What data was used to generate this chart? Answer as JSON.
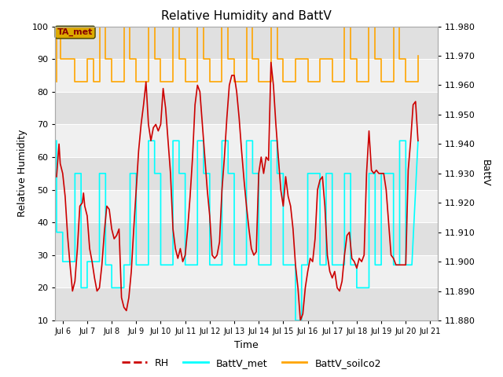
{
  "title": "Relative Humidity and BattV",
  "xlabel": "Time",
  "ylabel_left": "Relative Humidity",
  "ylabel_right": "BattV",
  "xlim_days": [
    5.7,
    21.3
  ],
  "ylim_left": [
    10,
    100
  ],
  "ylim_right": [
    11.88,
    11.98
  ],
  "xtick_labels": [
    "Jul 6",
    "Jul 7",
    "Jul 8",
    "Jul 9",
    "Jul 10",
    "Jul 11",
    "Jul 12",
    "Jul 13",
    "Jul 14",
    "Jul 15",
    "Jul 16",
    "Jul 17",
    "Jul 18",
    "Jul 19",
    "Jul 20",
    "Jul 21"
  ],
  "xtick_positions": [
    6,
    7,
    8,
    9,
    10,
    11,
    12,
    13,
    14,
    15,
    16,
    17,
    18,
    19,
    20,
    21
  ],
  "fig_facecolor": "#ffffff",
  "plot_bg_dark": "#e0e0e0",
  "plot_bg_light": "#f0f0f0",
  "grid_color": "#ffffff",
  "annotation_box_color": "#ddaa00",
  "annotation_text": "TA_met",
  "rh_color": "#cc0000",
  "battv_met_color": "cyan",
  "battv_soilco2_color": "orange",
  "rh_linewidth": 1.2,
  "battv_linewidth": 1.2,
  "legend_labels": [
    "RH",
    "BattV_met",
    "BattV_soilco2"
  ],
  "legend_colors": [
    "#cc0000",
    "cyan",
    "orange"
  ],
  "rh_data": [
    [
      5.75,
      54
    ],
    [
      5.85,
      64
    ],
    [
      5.9,
      58
    ],
    [
      6.0,
      55
    ],
    [
      6.1,
      48
    ],
    [
      6.2,
      36
    ],
    [
      6.3,
      27
    ],
    [
      6.4,
      19
    ],
    [
      6.5,
      22
    ],
    [
      6.6,
      32
    ],
    [
      6.7,
      45
    ],
    [
      6.8,
      46
    ],
    [
      6.85,
      49
    ],
    [
      6.9,
      45
    ],
    [
      7.0,
      42
    ],
    [
      7.1,
      32
    ],
    [
      7.2,
      28
    ],
    [
      7.3,
      23
    ],
    [
      7.4,
      19
    ],
    [
      7.5,
      20
    ],
    [
      7.6,
      27
    ],
    [
      7.7,
      37
    ],
    [
      7.8,
      45
    ],
    [
      7.9,
      44
    ],
    [
      8.0,
      38
    ],
    [
      8.1,
      35
    ],
    [
      8.2,
      36
    ],
    [
      8.3,
      38
    ],
    [
      8.4,
      17
    ],
    [
      8.5,
      14
    ],
    [
      8.6,
      13
    ],
    [
      8.7,
      17
    ],
    [
      8.8,
      25
    ],
    [
      8.9,
      38
    ],
    [
      9.0,
      50
    ],
    [
      9.1,
      62
    ],
    [
      9.2,
      70
    ],
    [
      9.3,
      76
    ],
    [
      9.4,
      83
    ],
    [
      9.5,
      70
    ],
    [
      9.6,
      65
    ],
    [
      9.7,
      69
    ],
    [
      9.8,
      70
    ],
    [
      9.9,
      68
    ],
    [
      10.0,
      70
    ],
    [
      10.1,
      81
    ],
    [
      10.2,
      75
    ],
    [
      10.3,
      65
    ],
    [
      10.4,
      55
    ],
    [
      10.5,
      38
    ],
    [
      10.6,
      32
    ],
    [
      10.7,
      29
    ],
    [
      10.8,
      32
    ],
    [
      10.9,
      28
    ],
    [
      11.0,
      30
    ],
    [
      11.1,
      38
    ],
    [
      11.2,
      48
    ],
    [
      11.3,
      60
    ],
    [
      11.4,
      76
    ],
    [
      11.5,
      82
    ],
    [
      11.6,
      80
    ],
    [
      11.7,
      70
    ],
    [
      11.8,
      60
    ],
    [
      11.9,
      50
    ],
    [
      12.0,
      42
    ],
    [
      12.1,
      30
    ],
    [
      12.2,
      29
    ],
    [
      12.3,
      30
    ],
    [
      12.4,
      34
    ],
    [
      12.5,
      50
    ],
    [
      12.6,
      60
    ],
    [
      12.7,
      72
    ],
    [
      12.8,
      82
    ],
    [
      12.9,
      85
    ],
    [
      13.0,
      85
    ],
    [
      13.1,
      80
    ],
    [
      13.2,
      72
    ],
    [
      13.3,
      62
    ],
    [
      13.4,
      53
    ],
    [
      13.5,
      45
    ],
    [
      13.6,
      38
    ],
    [
      13.7,
      32
    ],
    [
      13.8,
      30
    ],
    [
      13.9,
      31
    ],
    [
      14.0,
      55
    ],
    [
      14.1,
      60
    ],
    [
      14.2,
      55
    ],
    [
      14.3,
      60
    ],
    [
      14.4,
      59
    ],
    [
      14.5,
      89
    ],
    [
      14.6,
      82
    ],
    [
      14.7,
      70
    ],
    [
      14.8,
      60
    ],
    [
      14.9,
      50
    ],
    [
      15.0,
      45
    ],
    [
      15.1,
      54
    ],
    [
      15.2,
      48
    ],
    [
      15.3,
      45
    ],
    [
      15.4,
      38
    ],
    [
      15.5,
      27
    ],
    [
      15.6,
      20
    ],
    [
      15.7,
      10
    ],
    [
      15.8,
      12
    ],
    [
      15.9,
      20
    ],
    [
      16.0,
      25
    ],
    [
      16.1,
      29
    ],
    [
      16.2,
      28
    ],
    [
      16.3,
      35
    ],
    [
      16.4,
      50
    ],
    [
      16.5,
      53
    ],
    [
      16.6,
      54
    ],
    [
      16.7,
      45
    ],
    [
      16.8,
      30
    ],
    [
      16.9,
      25
    ],
    [
      17.0,
      23
    ],
    [
      17.1,
      25
    ],
    [
      17.2,
      20
    ],
    [
      17.3,
      19
    ],
    [
      17.4,
      22
    ],
    [
      17.5,
      30
    ],
    [
      17.6,
      36
    ],
    [
      17.7,
      37
    ],
    [
      17.8,
      29
    ],
    [
      17.9,
      28
    ],
    [
      18.0,
      26
    ],
    [
      18.1,
      29
    ],
    [
      18.2,
      28
    ],
    [
      18.3,
      30
    ],
    [
      18.4,
      55
    ],
    [
      18.5,
      68
    ],
    [
      18.6,
      56
    ],
    [
      18.7,
      55
    ],
    [
      18.8,
      56
    ],
    [
      18.9,
      55
    ],
    [
      19.0,
      55
    ],
    [
      19.1,
      55
    ],
    [
      19.2,
      50
    ],
    [
      19.3,
      40
    ],
    [
      19.4,
      30
    ],
    [
      19.5,
      29
    ],
    [
      19.6,
      27
    ],
    [
      19.7,
      27
    ],
    [
      19.8,
      27
    ],
    [
      19.9,
      27
    ],
    [
      20.0,
      27
    ],
    [
      20.1,
      56
    ],
    [
      20.2,
      65
    ],
    [
      20.3,
      76
    ],
    [
      20.4,
      77
    ],
    [
      20.5,
      65
    ]
  ],
  "battv_met_data": [
    [
      5.75,
      65
    ],
    [
      5.75,
      37
    ],
    [
      6.0,
      37
    ],
    [
      6.0,
      28
    ],
    [
      6.5,
      28
    ],
    [
      6.5,
      55
    ],
    [
      6.75,
      55
    ],
    [
      6.75,
      20
    ],
    [
      7.0,
      20
    ],
    [
      7.0,
      28
    ],
    [
      7.5,
      28
    ],
    [
      7.5,
      55
    ],
    [
      7.75,
      55
    ],
    [
      7.75,
      27
    ],
    [
      8.0,
      27
    ],
    [
      8.0,
      20
    ],
    [
      8.5,
      20
    ],
    [
      8.5,
      27
    ],
    [
      8.75,
      27
    ],
    [
      8.75,
      55
    ],
    [
      9.0,
      55
    ],
    [
      9.0,
      27
    ],
    [
      9.5,
      27
    ],
    [
      9.5,
      65
    ],
    [
      9.75,
      65
    ],
    [
      9.75,
      55
    ],
    [
      10.0,
      55
    ],
    [
      10.0,
      27
    ],
    [
      10.5,
      27
    ],
    [
      10.5,
      65
    ],
    [
      10.75,
      65
    ],
    [
      10.75,
      55
    ],
    [
      11.0,
      55
    ],
    [
      11.0,
      27
    ],
    [
      11.5,
      27
    ],
    [
      11.5,
      65
    ],
    [
      11.75,
      65
    ],
    [
      11.75,
      55
    ],
    [
      12.0,
      55
    ],
    [
      12.0,
      27
    ],
    [
      12.5,
      27
    ],
    [
      12.5,
      65
    ],
    [
      12.75,
      65
    ],
    [
      12.75,
      55
    ],
    [
      13.0,
      55
    ],
    [
      13.0,
      27
    ],
    [
      13.5,
      27
    ],
    [
      13.5,
      65
    ],
    [
      13.75,
      65
    ],
    [
      13.75,
      55
    ],
    [
      14.0,
      55
    ],
    [
      14.0,
      27
    ],
    [
      14.5,
      27
    ],
    [
      14.5,
      65
    ],
    [
      14.75,
      65
    ],
    [
      14.75,
      55
    ],
    [
      15.0,
      55
    ],
    [
      15.0,
      27
    ],
    [
      15.5,
      27
    ],
    [
      15.5,
      10
    ],
    [
      15.75,
      10
    ],
    [
      15.75,
      27
    ],
    [
      16.0,
      27
    ],
    [
      16.0,
      55
    ],
    [
      16.5,
      55
    ],
    [
      16.5,
      27
    ],
    [
      16.75,
      27
    ],
    [
      16.75,
      55
    ],
    [
      17.0,
      55
    ],
    [
      17.0,
      27
    ],
    [
      17.5,
      27
    ],
    [
      17.5,
      55
    ],
    [
      17.75,
      55
    ],
    [
      17.75,
      27
    ],
    [
      18.0,
      27
    ],
    [
      18.0,
      20
    ],
    [
      18.5,
      20
    ],
    [
      18.5,
      55
    ],
    [
      18.75,
      55
    ],
    [
      18.75,
      27
    ],
    [
      19.0,
      27
    ],
    [
      19.0,
      55
    ],
    [
      19.5,
      55
    ],
    [
      19.5,
      27
    ],
    [
      19.75,
      27
    ],
    [
      19.75,
      65
    ],
    [
      20.0,
      65
    ],
    [
      20.0,
      27
    ],
    [
      20.25,
      27
    ],
    [
      20.5,
      65
    ]
  ],
  "battv_soilco2_data": [
    [
      5.75,
      83
    ],
    [
      5.75,
      100
    ],
    [
      5.9,
      100
    ],
    [
      5.9,
      90
    ],
    [
      6.5,
      90
    ],
    [
      6.5,
      83
    ],
    [
      7.0,
      83
    ],
    [
      7.0,
      90
    ],
    [
      7.25,
      90
    ],
    [
      7.25,
      83
    ],
    [
      7.5,
      83
    ],
    [
      7.5,
      100
    ],
    [
      7.75,
      100
    ],
    [
      7.75,
      90
    ],
    [
      8.0,
      90
    ],
    [
      8.0,
      83
    ],
    [
      8.5,
      83
    ],
    [
      8.5,
      100
    ],
    [
      8.75,
      100
    ],
    [
      8.75,
      90
    ],
    [
      9.0,
      90
    ],
    [
      9.0,
      83
    ],
    [
      9.5,
      83
    ],
    [
      9.5,
      100
    ],
    [
      9.75,
      100
    ],
    [
      9.75,
      90
    ],
    [
      10.0,
      90
    ],
    [
      10.0,
      83
    ],
    [
      10.5,
      83
    ],
    [
      10.5,
      100
    ],
    [
      10.75,
      100
    ],
    [
      10.75,
      90
    ],
    [
      11.0,
      90
    ],
    [
      11.0,
      83
    ],
    [
      11.5,
      83
    ],
    [
      11.5,
      100
    ],
    [
      11.75,
      100
    ],
    [
      11.75,
      90
    ],
    [
      12.0,
      90
    ],
    [
      12.0,
      83
    ],
    [
      12.5,
      83
    ],
    [
      12.5,
      100
    ],
    [
      12.75,
      100
    ],
    [
      12.75,
      90
    ],
    [
      13.0,
      90
    ],
    [
      13.0,
      83
    ],
    [
      13.5,
      83
    ],
    [
      13.5,
      100
    ],
    [
      13.75,
      100
    ],
    [
      13.75,
      90
    ],
    [
      14.0,
      90
    ],
    [
      14.0,
      83
    ],
    [
      14.5,
      83
    ],
    [
      14.5,
      100
    ],
    [
      14.75,
      100
    ],
    [
      14.75,
      90
    ],
    [
      15.0,
      90
    ],
    [
      15.0,
      83
    ],
    [
      15.5,
      83
    ],
    [
      15.5,
      90
    ],
    [
      16.0,
      90
    ],
    [
      16.0,
      83
    ],
    [
      16.5,
      83
    ],
    [
      16.5,
      90
    ],
    [
      17.0,
      90
    ],
    [
      17.0,
      83
    ],
    [
      17.5,
      83
    ],
    [
      17.5,
      100
    ],
    [
      17.75,
      100
    ],
    [
      17.75,
      90
    ],
    [
      18.0,
      90
    ],
    [
      18.0,
      83
    ],
    [
      18.5,
      83
    ],
    [
      18.5,
      100
    ],
    [
      18.75,
      100
    ],
    [
      18.75,
      90
    ],
    [
      19.0,
      90
    ],
    [
      19.0,
      83
    ],
    [
      19.5,
      83
    ],
    [
      19.5,
      100
    ],
    [
      19.75,
      100
    ],
    [
      19.75,
      90
    ],
    [
      20.0,
      90
    ],
    [
      20.0,
      83
    ],
    [
      20.5,
      83
    ],
    [
      20.5,
      91
    ]
  ],
  "ytick_positions": [
    10,
    20,
    30,
    40,
    50,
    60,
    70,
    80,
    90,
    100
  ],
  "right_ticks": [
    11.88,
    11.89,
    11.9,
    11.91,
    11.92,
    11.93,
    11.94,
    11.95,
    11.96,
    11.97,
    11.98
  ]
}
